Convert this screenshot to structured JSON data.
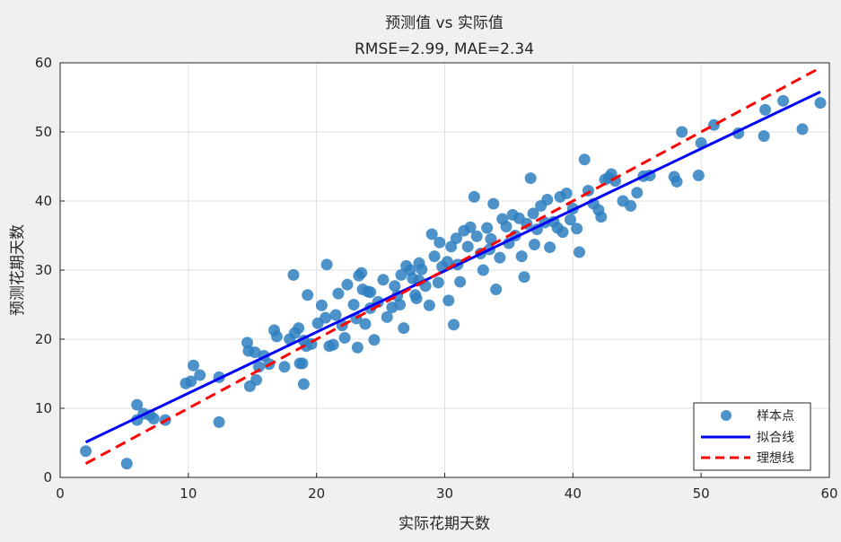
{
  "chart_data": {
    "type": "scatter",
    "title": "预测值 vs 实际值",
    "subtitle": "RMSE=2.99, MAE=2.34",
    "xlabel": "实际花期天数",
    "ylabel": "预测花期天数",
    "xlim": [
      0,
      60
    ],
    "ylim": [
      0,
      60
    ],
    "xticks": [
      "0",
      "10",
      "20",
      "30",
      "40",
      "50",
      "60"
    ],
    "yticks": [
      "0",
      "10",
      "20",
      "30",
      "40",
      "50",
      "60"
    ],
    "grid": true,
    "legend_position": "bottom-right",
    "colors": {
      "points": "#2f7fc1",
      "fit": "#0000ff",
      "ideal": "#ff0000"
    },
    "series": [
      {
        "name": "样本点",
        "kind": "scatter",
        "points": [
          [
            2,
            3.8
          ],
          [
            5.2,
            2
          ],
          [
            6,
            10.5
          ],
          [
            6,
            8.3
          ],
          [
            6.5,
            9.2
          ],
          [
            7,
            9
          ],
          [
            7.3,
            8.5
          ],
          [
            8.2,
            8.3
          ],
          [
            9.8,
            13.6
          ],
          [
            10.2,
            13.9
          ],
          [
            10.4,
            16.2
          ],
          [
            10.9,
            14.8
          ],
          [
            12.4,
            14.5
          ],
          [
            12.4,
            8
          ],
          [
            14.6,
            19.5
          ],
          [
            14.7,
            18.3
          ],
          [
            14.8,
            13.2
          ],
          [
            15.2,
            18.1
          ],
          [
            15.3,
            14.1
          ],
          [
            15.5,
            16
          ],
          [
            15.9,
            17.6
          ],
          [
            16.3,
            16.4
          ],
          [
            16.7,
            21.3
          ],
          [
            16.9,
            20.4
          ],
          [
            17.5,
            16
          ],
          [
            17.9,
            20
          ],
          [
            18.2,
            29.3
          ],
          [
            18.3,
            20.9
          ],
          [
            18.6,
            21.6
          ],
          [
            18.7,
            16.5
          ],
          [
            18.9,
            16.5
          ],
          [
            19,
            19.8
          ],
          [
            19,
            13.5
          ],
          [
            19.2,
            19
          ],
          [
            19.3,
            26.4
          ],
          [
            19.6,
            19.3
          ],
          [
            20.1,
            22.3
          ],
          [
            20.4,
            24.9
          ],
          [
            20.7,
            23.1
          ],
          [
            20.8,
            30.8
          ],
          [
            21,
            19
          ],
          [
            21.3,
            19.2
          ],
          [
            21.5,
            23.5
          ],
          [
            21.7,
            26.6
          ],
          [
            22,
            22
          ],
          [
            22.2,
            20.2
          ],
          [
            22.4,
            27.9
          ],
          [
            22.9,
            25
          ],
          [
            23.1,
            23
          ],
          [
            23.2,
            18.8
          ],
          [
            23.3,
            29.2
          ],
          [
            23.5,
            29.6
          ],
          [
            23.6,
            27.2
          ],
          [
            23.8,
            22.2
          ],
          [
            24,
            26.9
          ],
          [
            24.2,
            24.5
          ],
          [
            24.5,
            19.9
          ],
          [
            24.8,
            25.4
          ],
          [
            25.2,
            28.6
          ],
          [
            25.5,
            23.2
          ],
          [
            25.9,
            24.6
          ],
          [
            26.1,
            27.7
          ],
          [
            26.3,
            26.3
          ],
          [
            26.5,
            25
          ],
          [
            26.8,
            21.6
          ],
          [
            27,
            30.6
          ],
          [
            27.3,
            30
          ],
          [
            27.5,
            28.8
          ],
          [
            27.7,
            26.4
          ],
          [
            28,
            31
          ],
          [
            28.2,
            30.1
          ],
          [
            28.5,
            27.7
          ],
          [
            28.8,
            24.9
          ],
          [
            29,
            35.2
          ],
          [
            29.2,
            32
          ],
          [
            29.5,
            28.2
          ],
          [
            29.8,
            30.5
          ],
          [
            30.2,
            31.2
          ],
          [
            30.5,
            33.4
          ],
          [
            30.7,
            22.1
          ],
          [
            30.9,
            34.6
          ],
          [
            31.2,
            28.3
          ],
          [
            31.5,
            35.7
          ],
          [
            31.8,
            33.4
          ],
          [
            32,
            36.2
          ],
          [
            32.3,
            40.6
          ],
          [
            32.5,
            34.9
          ],
          [
            32.8,
            32.4
          ],
          [
            33,
            30
          ],
          [
            33.3,
            36.1
          ],
          [
            33.5,
            33
          ],
          [
            33.8,
            39.6
          ],
          [
            34,
            27.2
          ],
          [
            34.3,
            31.8
          ],
          [
            34.5,
            37.4
          ],
          [
            34.8,
            36.3
          ],
          [
            35,
            33.9
          ],
          [
            35.3,
            38
          ],
          [
            35.5,
            35
          ],
          [
            35.8,
            37.5
          ],
          [
            36.2,
            29
          ],
          [
            36.4,
            36.7
          ],
          [
            36.7,
            43.3
          ],
          [
            36.9,
            38.2
          ],
          [
            37.2,
            35.9
          ],
          [
            37.5,
            39.3
          ],
          [
            37.8,
            36.9
          ],
          [
            38,
            40.2
          ],
          [
            38.2,
            33.3
          ],
          [
            38.5,
            37
          ],
          [
            38.8,
            36.1
          ],
          [
            39,
            40.6
          ],
          [
            39.2,
            35.5
          ],
          [
            39.5,
            41.1
          ],
          [
            39.8,
            37.3
          ],
          [
            40,
            38.9
          ],
          [
            40.3,
            36
          ],
          [
            40.5,
            32.6
          ],
          [
            40.9,
            46
          ],
          [
            41.2,
            41.5
          ],
          [
            41.6,
            39.6
          ],
          [
            42,
            38.7
          ],
          [
            42.2,
            37.7
          ],
          [
            42.5,
            43.1
          ],
          [
            42.8,
            43.4
          ],
          [
            43,
            43.9
          ],
          [
            43.3,
            42.9
          ],
          [
            43.9,
            40
          ],
          [
            44.5,
            39.3
          ],
          [
            45,
            41.2
          ],
          [
            45.5,
            43.6
          ],
          [
            46,
            43.7
          ],
          [
            47.9,
            43.5
          ],
          [
            48.1,
            42.8
          ],
          [
            48.5,
            50
          ],
          [
            49.8,
            43.7
          ],
          [
            50,
            48.4
          ],
          [
            51,
            51
          ],
          [
            52.9,
            49.8
          ],
          [
            54.9,
            49.4
          ],
          [
            55,
            53.2
          ],
          [
            56.4,
            54.5
          ],
          [
            57.9,
            50.4
          ],
          [
            59.3,
            54.2
          ],
          [
            26.6,
            29.3
          ],
          [
            28,
            28.5
          ],
          [
            31,
            30.8
          ],
          [
            29.6,
            34
          ],
          [
            33.6,
            34.5
          ],
          [
            24.2,
            26.8
          ],
          [
            36,
            32
          ],
          [
            37,
            33.7
          ],
          [
            30.3,
            25.6
          ],
          [
            27.8,
            25.9
          ]
        ]
      },
      {
        "name": "拟合线",
        "kind": "line",
        "points": [
          [
            2,
            5.1
          ],
          [
            59.3,
            55.8
          ]
        ]
      },
      {
        "name": "理想线",
        "kind": "dashed-line",
        "points": [
          [
            2,
            2
          ],
          [
            59.3,
            59.3
          ]
        ]
      }
    ]
  }
}
